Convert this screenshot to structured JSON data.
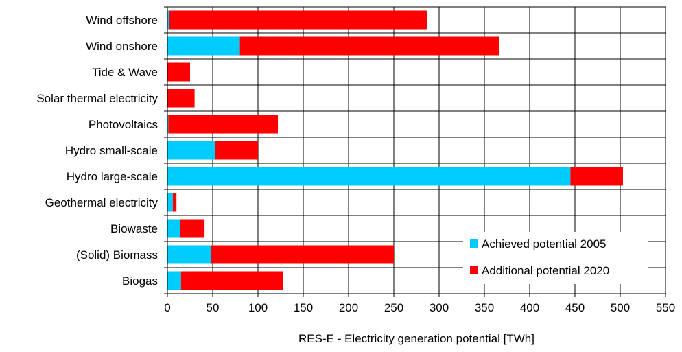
{
  "chart_data": {
    "type": "bar",
    "orientation": "horizontal",
    "stacked": true,
    "categories": [
      "Wind offshore",
      "Wind onshore",
      "Tide & Wave",
      "Solar thermal electricity",
      "Photovoltaics",
      "Hydro small-scale",
      "Hydro large-scale",
      "Geothermal electricity",
      "Biowaste",
      "(Solid) Biomass",
      "Biogas"
    ],
    "series": [
      {
        "name": "Achieved potential 2005",
        "color": "#00ccff",
        "values": [
          2,
          80,
          0,
          0,
          1,
          53,
          445,
          6,
          14,
          48,
          15
        ]
      },
      {
        "name": "Additional potential 2020",
        "color": "#ff0000",
        "values": [
          285,
          286,
          25,
          30,
          121,
          47,
          58,
          4,
          27,
          202,
          113
        ]
      }
    ],
    "xlabel": "RES-E - Electricity generation potential [TWh]",
    "xlim": [
      0,
      550
    ],
    "xticks": [
      0,
      50,
      100,
      150,
      200,
      250,
      300,
      350,
      400,
      450,
      500,
      550
    ],
    "grid": true,
    "legend_position": "bottom-right"
  }
}
